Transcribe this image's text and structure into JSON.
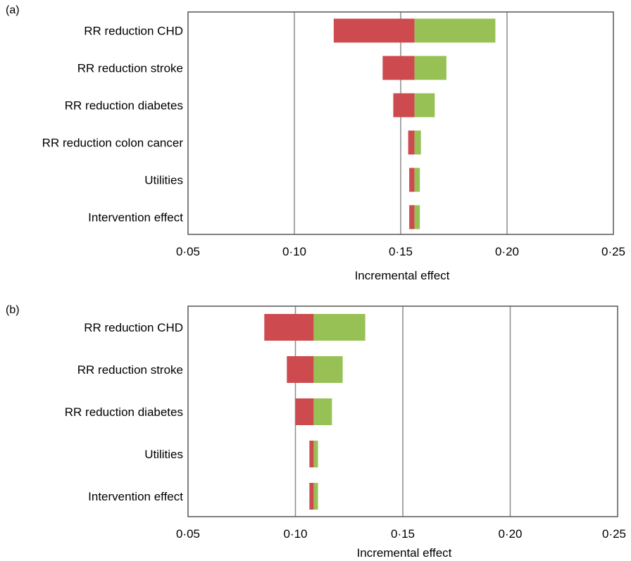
{
  "colors": {
    "low": "#cd4b4f",
    "high": "#98c155",
    "grid": "#8c8c8c",
    "frame": "#555555"
  },
  "chart_data": [
    {
      "type": "bar",
      "subtype": "tornado",
      "panel_label": "(a)",
      "xlabel": "Incremental effect",
      "xlim": [
        0.05,
        0.25
      ],
      "x_ticks": [
        "0·05",
        "0·10",
        "0·15",
        "0·20",
        "0·25"
      ],
      "x_tick_values": [
        0.05,
        0.1,
        0.15,
        0.2,
        0.25
      ],
      "grid": true,
      "base_value": 0.1565,
      "categories": [
        "RR reduction CHD",
        "RR reduction stroke",
        "RR reduction diabetes",
        "RR reduction colon cancer",
        "Utilities",
        "Intervention effect"
      ],
      "low": [
        0.1185,
        0.1415,
        0.1465,
        0.1535,
        0.154,
        0.154
      ],
      "high": [
        0.1945,
        0.1715,
        0.166,
        0.1595,
        0.159,
        0.159
      ]
    },
    {
      "type": "bar",
      "subtype": "tornado",
      "panel_label": "(b)",
      "xlabel": "Incremental effect",
      "xlim": [
        0.05,
        0.25
      ],
      "x_ticks": [
        "0·05",
        "0·10",
        "0·15",
        "0·20",
        "0·25"
      ],
      "x_tick_values": [
        0.05,
        0.1,
        0.15,
        0.2,
        0.25
      ],
      "grid": true,
      "base_value": 0.1085,
      "categories": [
        "RR reduction CHD",
        "RR reduction stroke",
        "RR reduction diabetes",
        "Utilities",
        "Intervention effect"
      ],
      "low": [
        0.0855,
        0.096,
        0.1,
        0.1065,
        0.1065
      ],
      "high": [
        0.1325,
        0.122,
        0.117,
        0.1105,
        0.1105
      ]
    }
  ]
}
